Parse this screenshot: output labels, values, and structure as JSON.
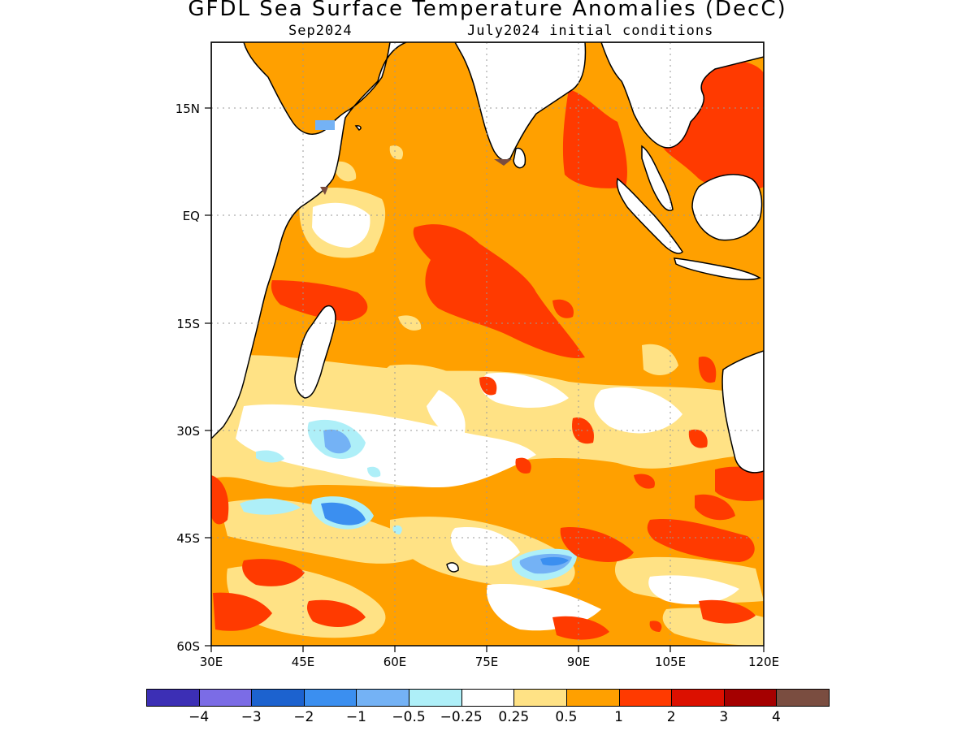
{
  "title": "GFDL Sea Surface Temperature Anomalies (DecC)",
  "subtitle_left": "Sep2024",
  "subtitle_right": "July2024 initial conditions",
  "x_axis": {
    "ticks": [
      "30E",
      "45E",
      "60E",
      "75E",
      "90E",
      "105E",
      "120E"
    ],
    "range_deg_e": [
      30,
      120
    ]
  },
  "y_axis": {
    "ticks": [
      "15N",
      "EQ",
      "15S",
      "30S",
      "45S",
      "60S"
    ],
    "range_deg_n": [
      -60,
      22
    ]
  },
  "grid": "dotted",
  "colorbar": {
    "colors": [
      "#3c2fb5",
      "#7b6ce6",
      "#1c62cf",
      "#3b8ff0",
      "#74b2f5",
      "#aeeff8",
      "#ffffff",
      "#ffe285",
      "#ffa000",
      "#ff3a00",
      "#dc1000",
      "#a50000",
      "#7a4d40"
    ],
    "labels": [
      "−4",
      "−3",
      "−2",
      "−1",
      "−0.5",
      "−0.25",
      "0.25",
      "0.5",
      "1",
      "2",
      "3",
      "4"
    ]
  },
  "legend_colors": {
    "land": "#ffffff",
    "coast": "#000000"
  }
}
